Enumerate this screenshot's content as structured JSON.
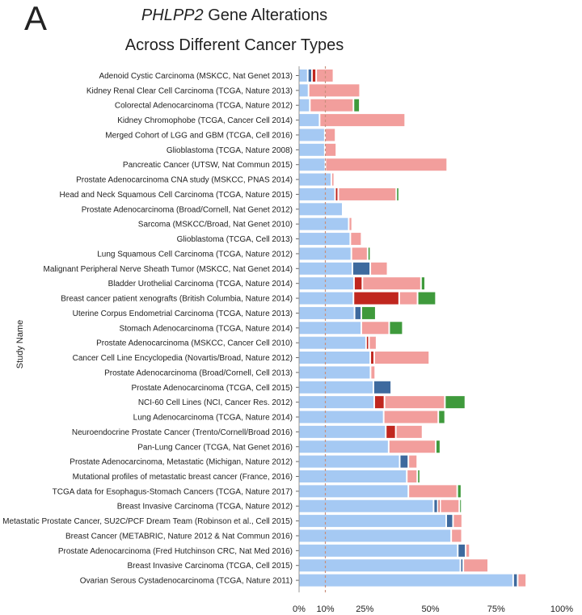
{
  "panel_label": "A",
  "chart_data": {
    "type": "bar",
    "orientation": "horizontal",
    "stacked": true,
    "title_gene": "PHLPP2",
    "title_rest": " Gene Alterations",
    "subtitle": "Across Different Cancer Types",
    "ylabel": "Study Name",
    "xlabel": "",
    "xlim": [
      0,
      100
    ],
    "xticks": [
      "0%",
      "10%",
      "25%",
      "50%",
      "75%",
      "100%"
    ],
    "xtick_values": [
      0,
      10,
      25,
      50,
      75,
      100
    ],
    "reference_line": 10,
    "grid": false,
    "colors": [
      "#a5c9f3",
      "#3e6a9e",
      "#c0271f",
      "#f29e9c",
      "#3f9a3c"
    ],
    "categories": [
      "Adenoid Cystic Carcinoma (MSKCC, Nat Genet 2013)",
      "Kidney Renal Clear Cell Carcinoma (TCGA, Nature 2013)",
      "Colorectal Adenocarcinoma (TCGA, Nature 2012)",
      "Kidney Chromophobe (TCGA, Cancer Cell 2014)",
      "Merged Cohort of LGG and GBM (TCGA, Cell 2016)",
      "Glioblastoma (TCGA, Nature 2008)",
      "Pancreatic Cancer (UTSW, Nat Commun 2015)",
      "Prostate Adenocarcinoma CNA study (MSKCC, PNAS 2014)",
      "Head and Neck Squamous Cell Carcinoma (TCGA, Nature 2015)",
      "Prostate Adenocarcinoma (Broad/Cornell, Nat Genet 2012)",
      "Sarcoma (MSKCC/Broad, Nat Genet 2010)",
      "Glioblastoma (TCGA, Cell 2013)",
      "Lung Squamous Cell Carcinoma (TCGA, Nature 2012)",
      "Malignant Peripheral Nerve Sheath Tumor (MSKCC, Nat Genet 2014)",
      "Bladder Urothelial Carcinoma (TCGA, Nature 2014)",
      "Breast cancer patient xenografts (British Columbia, Nature 2014)",
      "Uterine Corpus Endometrial Carcinoma (TCGA, Nature 2013)",
      "Stomach Adenocarcinoma (TCGA, Nature 2014)",
      "Prostate Adenocarcinoma (MSKCC, Cancer Cell 2010)",
      "Cancer Cell Line Encyclopedia (Novartis/Broad, Nature 2012)",
      "Prostate Adenocarcinoma (Broad/Cornell, Cell 2013)",
      "Prostate Adenocarcinoma (TCGA, Cell 2015)",
      "NCI-60 Cell Lines (NCI, Cancer Res. 2012)",
      "Lung Adenocarcinoma (TCGA, Nature 2014)",
      "Neuroendocrine Prostate Cancer (Trento/Cornell/Broad 2016)",
      "Pan-Lung Cancer (TCGA, Nat Genet 2016)",
      "Prostate Adenocarcinoma, Metastatic (Michigan, Nature 2012)",
      "Mutational profiles of metastatic breast cancer (France, 2016)",
      "TCGA data for Esophagus-Stomach Cancers (TCGA, Nature 2017)",
      "Breast Invasive Carcinoma (TCGA, Nature 2012)",
      "Metastatic Prostate Cancer, SU2C/PCF Dream Team (Robinson et al., Cell 2015)",
      "Breast Cancer (METABRIC, Nature 2012 & Nat Commun 2016)",
      "Prostate Adenocarcinoma (Fred Hutchinson CRC, Nat Med 2016)",
      "Breast Invasive Carcinoma (TCGA, Cell 2015)",
      "Ovarian Serous Cystadenocarcinoma (TCGA, Nature 2011)"
    ],
    "series": [
      {
        "values": [
          3,
          3.3,
          3.8,
          7.5,
          9.5,
          9.5,
          9.7,
          12,
          13.4,
          16.3,
          18.6,
          19.2,
          19.6,
          20,
          20.6,
          20.4,
          20.8,
          23.4,
          25.2,
          26.8,
          26.9,
          28,
          28.3,
          31.9,
          32.7,
          33.8,
          38,
          40.7,
          41.3,
          50.9,
          55.7,
          57.6,
          60.1,
          61.1,
          81.2
        ]
      },
      {
        "values": [
          1,
          0,
          0,
          0,
          0,
          0,
          0,
          0,
          0,
          0,
          0,
          0,
          0,
          6.2,
          0,
          0,
          2,
          0,
          0,
          0,
          0,
          6.2,
          0,
          0,
          0,
          0,
          2.7,
          0,
          0,
          1,
          2,
          0,
          2.4,
          0.5,
          1.1
        ]
      },
      {
        "values": [
          1,
          0,
          0,
          0,
          0,
          0,
          0,
          0,
          0.6,
          0,
          0,
          0,
          0,
          0,
          2.6,
          16.8,
          0,
          0,
          0.5,
          0.9,
          0,
          0,
          3.3,
          0,
          3.2,
          0,
          0,
          0,
          0,
          0.3,
          0,
          0,
          0,
          0,
          0
        ]
      },
      {
        "values": [
          6,
          19,
          16,
          32,
          3.5,
          3.8,
          45.8,
          0.5,
          21.5,
          0,
          0.7,
          3.7,
          5.6,
          6,
          21.7,
          6.4,
          0,
          10,
          2.3,
          20.4,
          1.2,
          0,
          22.4,
          20.2,
          9.6,
          17.3,
          2.8,
          3.4,
          18,
          6.7,
          2.9,
          3.5,
          1,
          8.9,
          2.7
        ]
      },
      {
        "values": [
          0,
          0,
          1.8,
          0,
          0,
          0,
          0,
          0,
          0.5,
          0,
          0,
          0,
          0.5,
          0,
          1,
          6.4,
          4.9,
          4.6,
          0,
          0,
          0,
          0,
          7.2,
          2,
          0,
          1.2,
          0,
          0.5,
          1,
          0.3,
          0,
          0,
          0,
          0,
          0
        ]
      }
    ]
  }
}
